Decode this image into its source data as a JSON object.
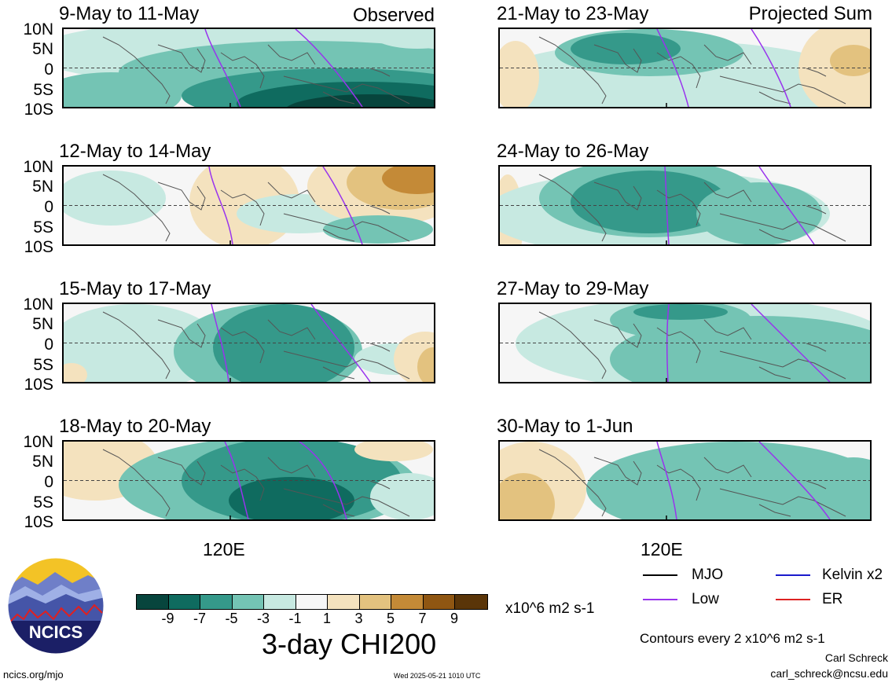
{
  "labels": {
    "observed": "Observed",
    "projected": "Projected Sum",
    "lat": [
      "10N",
      "5N",
      "0",
      "5S",
      "10S"
    ],
    "lon": "120E"
  },
  "panels": [
    {
      "title": "9-May to 11-May"
    },
    {
      "title": "12-May to 14-May"
    },
    {
      "title": "15-May to 17-May"
    },
    {
      "title": "18-May to 20-May"
    },
    {
      "title": "21-May to 23-May"
    },
    {
      "title": "24-May to 26-May"
    },
    {
      "title": "27-May to 29-May"
    },
    {
      "title": "30-May to 1-Jun"
    }
  ],
  "colorbar": {
    "ticks": [
      "-9",
      "-7",
      "-5",
      "-3",
      "-1",
      "1",
      "3",
      "5",
      "7",
      "9"
    ],
    "units": "x10^6 m2 s-1",
    "colors": [
      "#07453d",
      "#0f6b5f",
      "#35998a",
      "#74c4b4",
      "#c7e9e1",
      "#f6f6f6",
      "#f4e2be",
      "#e3c27f",
      "#c48a37",
      "#8f5612",
      "#5a3508"
    ]
  },
  "title": "3-day CHI200",
  "logo": {
    "text": "NCICS"
  },
  "legend": {
    "mjo": "MJO",
    "kelvin": "Kelvin x2",
    "low": "Low",
    "er": "ER",
    "colors": {
      "mjo": "#000000",
      "kelvin": "#1a1acc",
      "low": "#9933ee",
      "er": "#dd2222"
    }
  },
  "contours_note": "Contours every 2 x10^6 m2 s-1",
  "author": "Carl Schreck",
  "email": "carl_schreck@ncsu.edu",
  "site": "ncics.org/mjo",
  "timestamp": "Wed 2025-05-21 1010 UTC"
}
